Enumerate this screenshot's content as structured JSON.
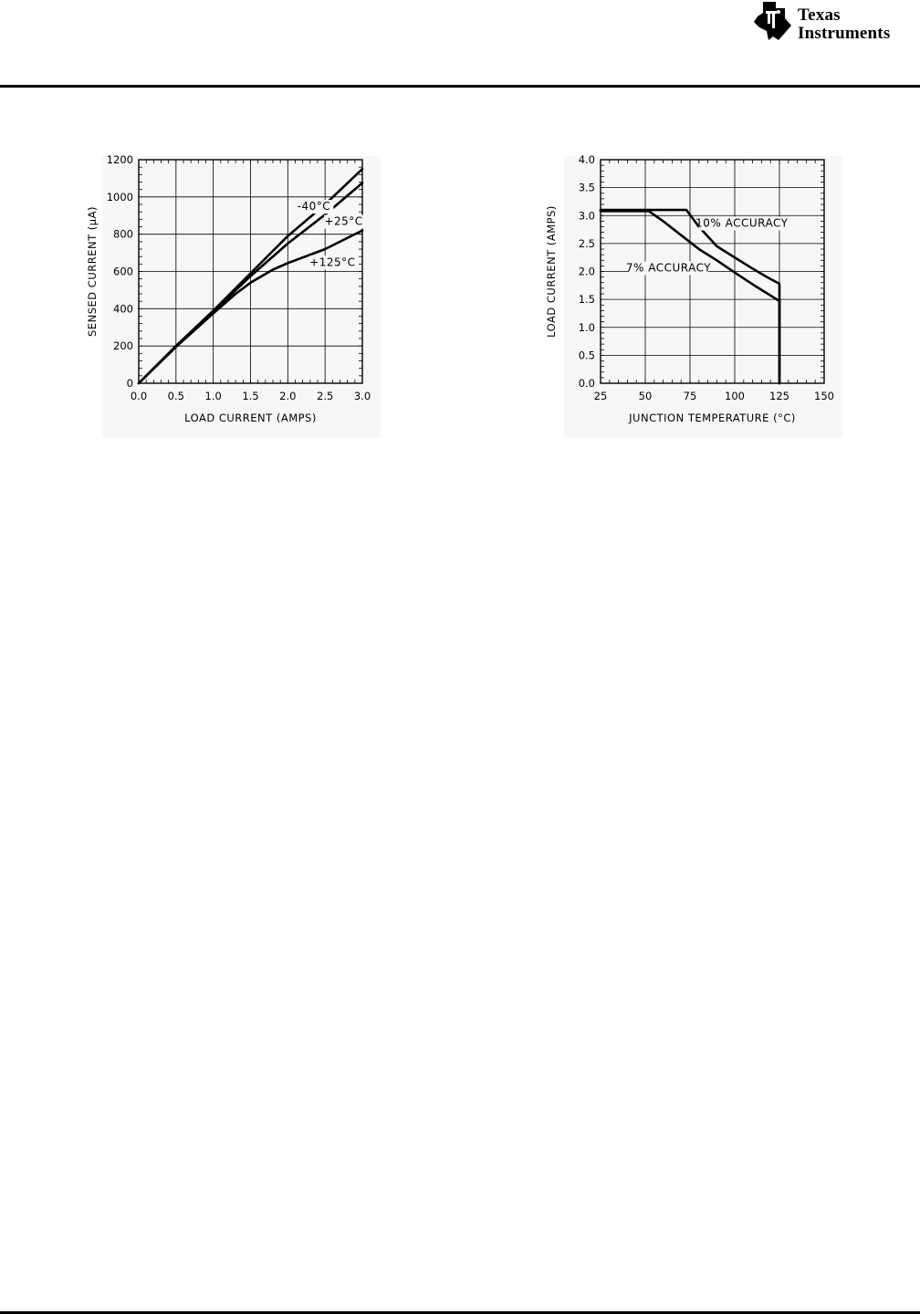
{
  "header": {
    "logo": {
      "icon": "ti-logo-icon",
      "line1": "Texas",
      "line2": "Instruments"
    }
  },
  "chart_data": [
    {
      "type": "line",
      "xlabel": "LOAD CURRENT (AMPS)",
      "ylabel": "SENSED CURRENT (μA)",
      "xlim": [
        0,
        3.0
      ],
      "ylim": [
        0,
        1200
      ],
      "xticks": [
        0,
        0.5,
        1.0,
        1.5,
        2.0,
        2.5,
        3.0
      ],
      "xtick_labels": [
        "0.0",
        "0.5",
        "1.0",
        "1.5",
        "2.0",
        "2.5",
        "3.0"
      ],
      "yticks": [
        0,
        200,
        400,
        600,
        800,
        1000,
        1200
      ],
      "ytick_labels": [
        "0",
        "200",
        "400",
        "600",
        "800",
        "1000",
        "1200"
      ],
      "grid": true,
      "series": [
        {
          "name": "-40°C",
          "x": [
            0,
            0.5,
            1.0,
            1.5,
            2.0,
            2.5,
            3.0
          ],
          "y": [
            0,
            200,
            390,
            590,
            790,
            960,
            1150
          ]
        },
        {
          "name": "+25°C",
          "x": [
            0,
            0.5,
            1.0,
            1.5,
            2.0,
            2.5,
            3.0
          ],
          "y": [
            0,
            200,
            385,
            575,
            750,
            905,
            1075
          ]
        },
        {
          "name": "+125°C",
          "x": [
            0,
            0.5,
            1.0,
            1.3,
            1.5,
            1.8,
            2.0,
            2.5,
            3.0
          ],
          "y": [
            0,
            195,
            375,
            480,
            540,
            610,
            645,
            720,
            820
          ]
        }
      ],
      "annotations": [
        {
          "text": "-40°C",
          "x": 2.35,
          "y": 930
        },
        {
          "text": "+25°C",
          "x": 2.75,
          "y": 850
        },
        {
          "text": "+125°C",
          "x": 2.6,
          "y": 630
        }
      ]
    },
    {
      "type": "line",
      "xlabel": "JUNCTION TEMPERATURE (°C)",
      "ylabel": "LOAD CURRENT (AMPS)",
      "xlim": [
        25,
        150
      ],
      "ylim": [
        0,
        4.0
      ],
      "xticks": [
        25,
        50,
        75,
        100,
        125,
        150
      ],
      "xtick_labels": [
        "25",
        "50",
        "75",
        "100",
        "125",
        "150"
      ],
      "yticks": [
        0,
        0.5,
        1.0,
        1.5,
        2.0,
        2.5,
        3.0,
        3.5,
        4.0
      ],
      "ytick_labels": [
        "0.0",
        "0.5",
        "1.0",
        "1.5",
        "2.0",
        "2.5",
        "3.0",
        "3.5",
        "4.0"
      ],
      "grid": true,
      "series": [
        {
          "name": "10% ACCURACY",
          "x": [
            25,
            73,
            80,
            90,
            100,
            110,
            118,
            125,
            125
          ],
          "y": [
            3.1,
            3.1,
            2.8,
            2.45,
            2.25,
            2.05,
            1.9,
            1.78,
            0
          ]
        },
        {
          "name": "7% ACCURACY",
          "x": [
            25,
            52,
            60,
            70,
            80,
            90,
            100,
            110,
            120,
            125,
            125
          ],
          "y": [
            3.08,
            3.08,
            2.9,
            2.65,
            2.4,
            2.2,
            1.98,
            1.77,
            1.57,
            1.47,
            0
          ]
        }
      ],
      "annotations": [
        {
          "text": "10% ACCURACY",
          "x": 104,
          "y": 2.8
        },
        {
          "text": "7% ACCURACY",
          "x": 63,
          "y": 2.0
        }
      ]
    }
  ]
}
